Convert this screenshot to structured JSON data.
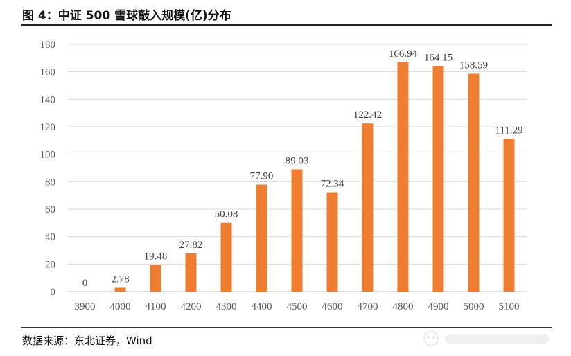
{
  "figure": {
    "title": "图 4：中证 500 雪球敲入规模(亿)分布",
    "source": "数据来源：东北证券，Wind"
  },
  "chart_data": {
    "type": "bar",
    "categories": [
      "3900",
      "4000",
      "4100",
      "4200",
      "4300",
      "4400",
      "4500",
      "4600",
      "4700",
      "4800",
      "4900",
      "5000",
      "5100"
    ],
    "values": [
      0,
      2.78,
      19.48,
      27.82,
      50.08,
      77.9,
      89.03,
      72.34,
      122.42,
      166.94,
      164.15,
      158.59,
      111.29
    ],
    "value_labels": [
      "0",
      "2.78",
      "19.48",
      "27.82",
      "50.08",
      "77.90",
      "89.03",
      "72.34",
      "122.42",
      "166.94",
      "164.15",
      "158.59",
      "111.29"
    ],
    "yticks": [
      "0",
      "20",
      "40",
      "60",
      "80",
      "100",
      "120",
      "140",
      "160",
      "180"
    ],
    "ylim": [
      0,
      180
    ],
    "grid": true,
    "bar_color": "#ED7D31",
    "grid_color": "#D9D9D9"
  }
}
